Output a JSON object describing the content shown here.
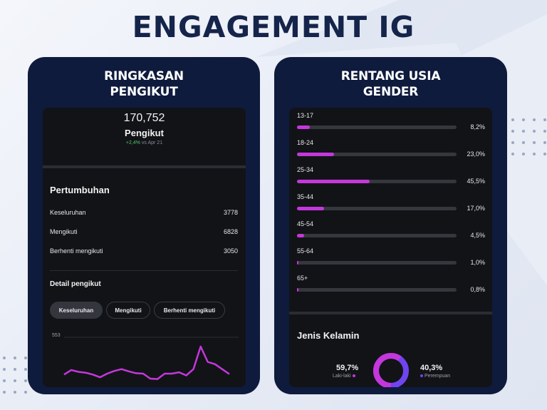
{
  "title": "ENGAGEMENT IG",
  "left_card": {
    "title_line1": "RINGKASAN",
    "title_line2": "PENGIKUT",
    "follower_count": "170,752",
    "follower_label": "Pengikut",
    "change_value": "+2,4%",
    "change_suffix": "vs Apr 21",
    "growth_title": "Pertumbuhan",
    "stats": [
      {
        "label": "Keseluruhan",
        "value": "3778"
      },
      {
        "label": "Mengikuti",
        "value": "6828"
      },
      {
        "label": "Berhenti mengikuti",
        "value": "3050"
      }
    ],
    "detail_title": "Detail pengikut",
    "tabs": [
      "Keseluruhan",
      "Mengikuti",
      "Berhenti mengikuti"
    ],
    "active_tab": 0
  },
  "right_card": {
    "title_line1": "RENTANG USIA",
    "title_line2": "GENDER",
    "age_ranges": [
      {
        "label": "13-17",
        "percent": "8,2%",
        "value": 8.2
      },
      {
        "label": "18-24",
        "percent": "23,0%",
        "value": 23.0
      },
      {
        "label": "25-34",
        "percent": "45,5%",
        "value": 45.5
      },
      {
        "label": "35-44",
        "percent": "17,0%",
        "value": 17.0
      },
      {
        "label": "45-54",
        "percent": "4,5%",
        "value": 4.5
      },
      {
        "label": "55-64",
        "percent": "1,0%",
        "value": 1.0
      },
      {
        "label": "65+",
        "percent": "0,8%",
        "value": 0.8
      }
    ],
    "gender_title": "Jenis Kelamin",
    "male_percent": "59,7%",
    "male_label": "Laki-laki",
    "female_percent": "40,3%",
    "female_label": "Perempuan"
  },
  "chart_data": {
    "type": "line",
    "y_tick_label": "553",
    "ylim": [
      0,
      553
    ],
    "values": [
      140,
      190,
      170,
      160,
      140,
      110,
      150,
      180,
      200,
      175,
      155,
      150,
      95,
      90,
      150,
      150,
      165,
      130,
      200,
      450,
      280,
      255,
      200,
      145
    ]
  },
  "colors": {
    "accent_purple": "#c437dc",
    "accent_violet": "#7044ee",
    "card_bg": "#0f1b3d",
    "screen_bg": "#121317",
    "positive": "#56c26b",
    "title_color": "#15244a"
  }
}
